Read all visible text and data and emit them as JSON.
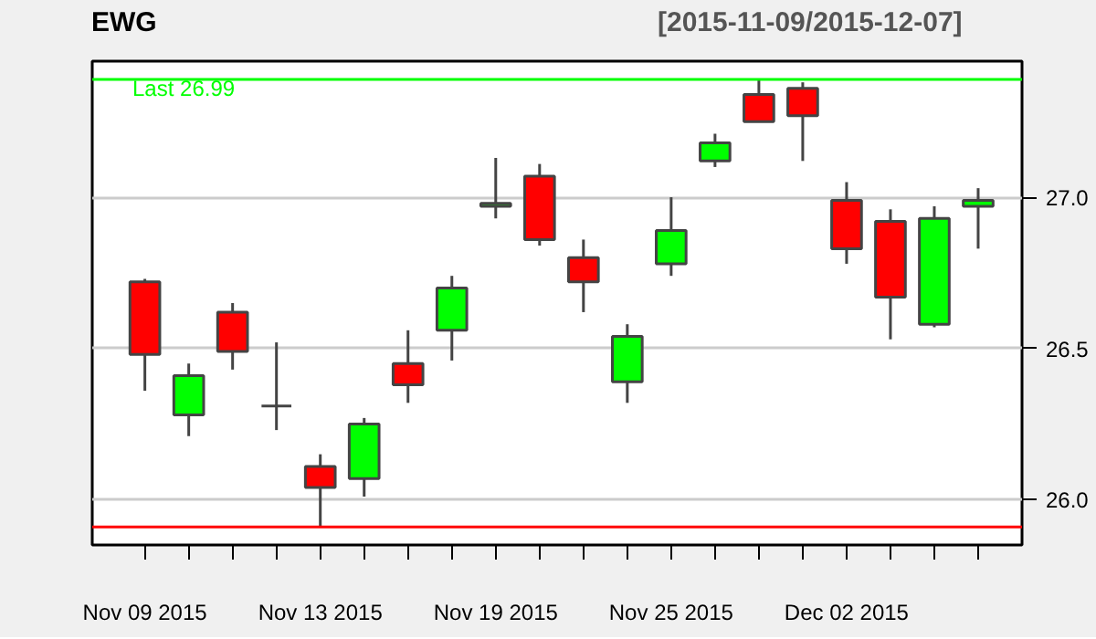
{
  "chart_data": {
    "type": "candlestick",
    "title": "EWG",
    "subtitle": "[2015-11-09/2015-12-07]",
    "categories": [
      "Nov 09 2015",
      null,
      null,
      null,
      "Nov 13 2015",
      null,
      null,
      null,
      "Nov 19 2015",
      null,
      null,
      null,
      "Nov 25 2015",
      null,
      null,
      null,
      "Dec 02 2015",
      null,
      null,
      null
    ],
    "ohlc": [
      [
        26.72,
        26.73,
        26.36,
        26.48
      ],
      [
        26.28,
        26.45,
        26.21,
        26.41
      ],
      [
        26.62,
        26.65,
        26.43,
        26.49
      ],
      [
        26.31,
        26.52,
        26.23,
        26.31
      ],
      [
        26.11,
        26.15,
        25.91,
        26.04
      ],
      [
        26.07,
        26.27,
        26.01,
        26.25
      ],
      [
        26.45,
        26.56,
        26.32,
        26.38
      ],
      [
        26.56,
        26.74,
        26.46,
        26.7
      ],
      [
        26.97,
        27.13,
        26.93,
        26.98
      ],
      [
        27.07,
        27.11,
        26.84,
        26.86
      ],
      [
        26.8,
        26.86,
        26.62,
        26.72
      ],
      [
        26.39,
        26.58,
        26.32,
        26.54
      ],
      [
        26.78,
        27.0,
        26.74,
        26.89
      ],
      [
        27.12,
        27.21,
        27.1,
        27.18
      ],
      [
        27.34,
        27.39,
        27.25,
        27.25
      ],
      [
        27.36,
        27.38,
        27.12,
        27.27
      ],
      [
        26.99,
        27.05,
        26.78,
        26.83
      ],
      [
        26.92,
        26.96,
        26.53,
        26.67
      ],
      [
        26.58,
        26.97,
        26.57,
        26.93
      ],
      [
        26.97,
        27.03,
        26.83,
        26.99
      ]
    ],
    "colors": [
      "#ff0000",
      "#00ff00",
      "#ff0000",
      "#444444",
      "#ff0000",
      "#00ff00",
      "#ff0000",
      "#00ff00",
      "#00ff00",
      "#ff0000",
      "#ff0000",
      "#00ff00",
      "#00ff00",
      "#00ff00",
      "#ff0000",
      "#ff0000",
      "#ff0000",
      "#ff0000",
      "#00ff00",
      "#00ff00"
    ],
    "ylim": [
      25.85,
      27.45
    ],
    "yticks": [
      {
        "value": 26.0,
        "label": "26.0"
      },
      {
        "value": 26.5,
        "label": "26.5"
      },
      {
        "value": 27.0,
        "label": "27.0"
      }
    ],
    "grid": "y",
    "ref_lines": [
      {
        "axis": "y",
        "value": 27.39,
        "color": "#00ff00"
      },
      {
        "axis": "y",
        "value": 25.91,
        "color": "#ff0000"
      }
    ],
    "annotations": [
      "Last 26.99"
    ]
  }
}
